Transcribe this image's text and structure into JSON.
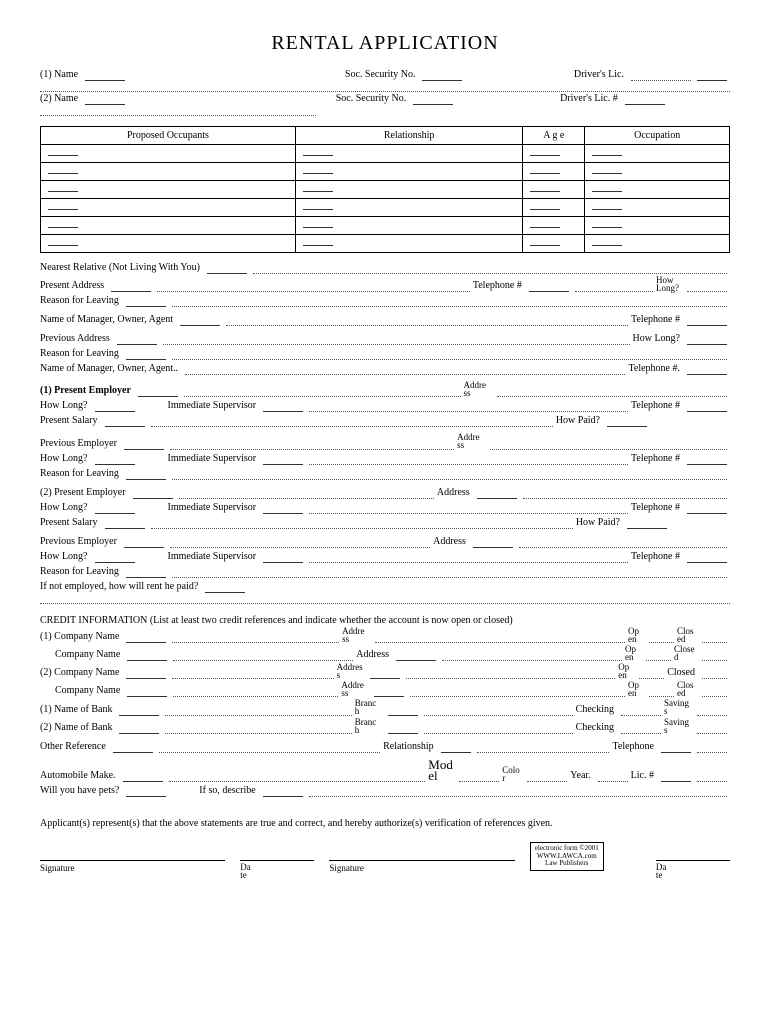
{
  "title": "RENTAL APPLICATION",
  "header": {
    "name1": "(1) Name",
    "name2": "(2) Name",
    "ssn": "Soc. Security No.",
    "dl": "Driver's Lic.",
    "dlnum": "Driver's Lic. #"
  },
  "table": {
    "headers": [
      "Proposed Occupants",
      "Relationship",
      "A g e",
      "Occupation"
    ],
    "rows": 6
  },
  "fields": {
    "nearest_relative": "Nearest Relative (Not Living With You)",
    "present_address": "Present Address",
    "telephone": "Telephone #",
    "how_long": "How Long?",
    "reason_leaving": "Reason for Leaving",
    "manager": "Name of Manager, Owner, Agent",
    "manager2": "Name of Manager, Owner, Agent..",
    "previous_address": "Previous Address",
    "present_employer1": "(1) Present Employer",
    "present_employer2": "(2) Present Employer",
    "address": "Address",
    "addre_ss": "Addre\nss",
    "immediate_supervisor": "Immediate Supervisor",
    "present_salary": "Present Salary",
    "how_paid": "How Paid?",
    "previous_employer": "Previous Employer",
    "not_employed": "If not employed, how will rent he paid?"
  },
  "credit": {
    "header": "CREDIT INFORMATION (List at least two credit references and indicate whether the account is now open or closed)",
    "company1": "(1) Company Name",
    "company2": "(2) Company Name",
    "company": "Company Name",
    "bank1": "(1) Name of Bank",
    "bank2": "(2) Name of Bank",
    "other_ref": "Other Reference",
    "relationship": "Relationship",
    "open": "Op\nen",
    "closed": "Clos\ned",
    "close_d": "Close\nd",
    "checking": "Checking",
    "savings": "Saving\ns",
    "branch": "Branc\nh",
    "auto_make": "Automobile Make.",
    "model": "Mod\nel",
    "color": "Colo\nr",
    "year": "Year.",
    "lic": "Lic. #",
    "pets": "Will you have pets?",
    "describe": "If so, describe"
  },
  "footer": {
    "statement": "Applicant(s) represent(s) that the above statements are true and correct, and hereby authorize(s) verification of references given.",
    "signature": "Signature",
    "date": "Da\nte",
    "copyright": "electronic form ©2001\nWWW.LAWCA.com\nLaw Publishers"
  }
}
